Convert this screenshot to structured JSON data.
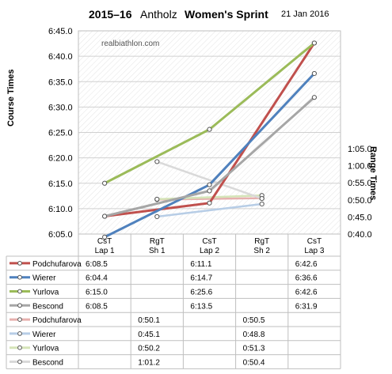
{
  "header": {
    "season": "2015–16",
    "venue": "Antholz",
    "event": "Women's Sprint",
    "date": "21 Jan 2016"
  },
  "watermark": "realbiathlon.com",
  "chart_data": {
    "type": "line",
    "y_left_label": "Course Times",
    "y_right_label": "Range Times",
    "y_left_ticks": [
      "6:05.0",
      "6:10.0",
      "6:15.0",
      "6:20.0",
      "6:25.0",
      "6:30.0",
      "6:35.0",
      "6:40.0",
      "6:45.0"
    ],
    "y_left_range_seconds": [
      365,
      405
    ],
    "y_right_ticks": [
      "0:40.0",
      "0:45.0",
      "0:50.0",
      "0:55.0",
      "1:00.0",
      "1:05.0"
    ],
    "y_right_range_seconds": [
      40,
      65
    ],
    "columns": [
      {
        "line1": "CsT",
        "line2": "Lap 1"
      },
      {
        "line1": "RgT",
        "line2": "Sh 1"
      },
      {
        "line1": "CsT",
        "line2": "Lap 2"
      },
      {
        "line1": "RgT",
        "line2": "Sh 2"
      },
      {
        "line1": "CsT",
        "line2": "Lap 3"
      }
    ],
    "course_series": [
      {
        "name": "Podchufarova",
        "color": "#c0504d",
        "values": [
          "6:08.5",
          null,
          "6:11.1",
          null,
          "6:42.6"
        ],
        "seconds": [
          368.5,
          null,
          371.1,
          null,
          402.6
        ]
      },
      {
        "name": "Wierer",
        "color": "#4f81bd",
        "values": [
          "6:04.4",
          null,
          "6:14.7",
          null,
          "6:36.6"
        ],
        "seconds": [
          364.4,
          null,
          374.7,
          null,
          396.6
        ]
      },
      {
        "name": "Yurlova",
        "color": "#9bbb59",
        "values": [
          "6:15.0",
          null,
          "6:25.6",
          null,
          "6:42.6"
        ],
        "seconds": [
          375.0,
          null,
          385.6,
          null,
          402.6
        ]
      },
      {
        "name": "Bescond",
        "color": "#a6a6a6",
        "values": [
          "6:08.5",
          null,
          "6:13.5",
          null,
          "6:31.9"
        ],
        "seconds": [
          368.5,
          null,
          373.5,
          null,
          391.9
        ]
      }
    ],
    "range_series": [
      {
        "name": "Podchufarova",
        "color": "#e6b0ae",
        "values": [
          null,
          "0:50.1",
          null,
          "0:50.5",
          null
        ],
        "seconds": [
          null,
          50.1,
          null,
          50.5,
          null
        ]
      },
      {
        "name": "Wierer",
        "color": "#b7cde6",
        "values": [
          null,
          "0:45.1",
          null,
          "0:48.8",
          null
        ],
        "seconds": [
          null,
          45.1,
          null,
          48.8,
          null
        ]
      },
      {
        "name": "Yurlova",
        "color": "#d5e4b8",
        "values": [
          null,
          "0:50.2",
          null,
          "0:51.3",
          null
        ],
        "seconds": [
          null,
          50.2,
          null,
          51.3,
          null
        ]
      },
      {
        "name": "Bescond",
        "color": "#d9d9d9",
        "values": [
          null,
          "1:01.2",
          null,
          "0:50.4",
          null
        ],
        "seconds": [
          null,
          61.2,
          null,
          50.4,
          null
        ]
      }
    ]
  }
}
